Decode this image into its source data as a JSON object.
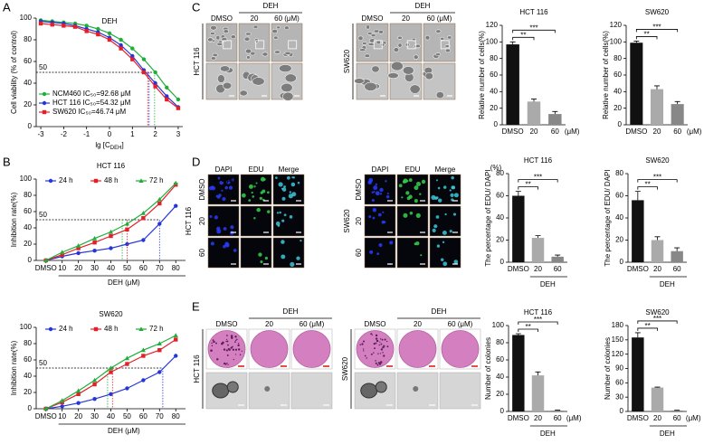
{
  "panel_labels": [
    "A",
    "B",
    "C",
    "D",
    "E"
  ],
  "charts": [
    {
      "type": "line",
      "title": "DEH",
      "xlabel": "lg [C",
      "xlabel_sub": "DEH",
      "xlabel_end": "]",
      "ylabel": "Cell viability (% of control)",
      "x": [
        -3,
        -2.5,
        -2,
        -1.5,
        -1,
        -0.5,
        0,
        0.5,
        1,
        1.5,
        2,
        2.5,
        3
      ],
      "xlim": [
        -3.2,
        3.2
      ],
      "xticks": [
        -3,
        -2,
        -1,
        0,
        1,
        2,
        3
      ],
      "ylim": [
        0,
        100
      ],
      "yticks": [
        0,
        20,
        40,
        60,
        80,
        100
      ],
      "threshold": 50,
      "legend": "lower-left",
      "series": [
        {
          "name": "NCM460 IC₅₀=92.68 μM",
          "color": "#1fae3a",
          "marker": "circle",
          "ic50": 1.97,
          "values": [
            98,
            97,
            96,
            95,
            93,
            90,
            86,
            80,
            72,
            62,
            50,
            36,
            25
          ]
        },
        {
          "name": "HCT 116 IC₅₀=54.32 μM",
          "color": "#2436d8",
          "marker": "circle",
          "ic50": 1.73,
          "values": [
            97,
            96,
            95,
            93,
            90,
            87,
            82,
            75,
            65,
            52,
            40,
            28,
            18
          ]
        },
        {
          "name": "SW620  IC₅₀=46.74 μM",
          "color": "#e3202a",
          "marker": "square",
          "ic50": 1.67,
          "values": [
            95,
            94,
            93,
            92,
            88,
            85,
            80,
            72,
            62,
            50,
            37,
            25,
            17
          ]
        }
      ]
    },
    {
      "type": "line",
      "title": "HCT 116",
      "xlabel": "DEH (μM)",
      "ylabel": "Inhibition rate(%)",
      "x": [
        0,
        10,
        20,
        30,
        40,
        50,
        60,
        70,
        80
      ],
      "xlim": [
        -6,
        86
      ],
      "xticks": [
        {
          "value": 0,
          "label": "DMSO"
        },
        10,
        20,
        30,
        40,
        50,
        60,
        70,
        80
      ],
      "ylim": [
        0,
        100
      ],
      "yticks": [
        0,
        20,
        40,
        60,
        80,
        100
      ],
      "threshold": 50,
      "legend": "top",
      "series": [
        {
          "name": "24 h",
          "color": "#2436d8",
          "marker": "circle",
          "ic50": 70,
          "values": [
            0,
            5,
            9,
            12,
            15,
            20,
            25,
            45,
            67
          ]
        },
        {
          "name": "48 h",
          "color": "#e3202a",
          "marker": "square",
          "ic50": 50,
          "values": [
            0,
            7,
            15,
            22,
            30,
            38,
            52,
            70,
            93
          ]
        },
        {
          "name": "72 h",
          "color": "#1fae3a",
          "marker": "triangle",
          "ic50": 47,
          "values": [
            0,
            10,
            18,
            27,
            35,
            45,
            58,
            75,
            95
          ]
        }
      ]
    },
    {
      "type": "line",
      "title": "SW620",
      "xlabel": "DEH (μM)",
      "ylabel": "Inhibition rate(%)",
      "x": [
        0,
        10,
        20,
        30,
        40,
        50,
        60,
        70,
        80
      ],
      "xlim": [
        -6,
        86
      ],
      "xticks": [
        {
          "value": 0,
          "label": "DMSO"
        },
        10,
        20,
        30,
        40,
        50,
        60,
        70,
        80
      ],
      "ylim": [
        0,
        100
      ],
      "yticks": [
        0,
        20,
        40,
        60,
        80,
        100
      ],
      "threshold": 50,
      "legend": "top",
      "series": [
        {
          "name": "24 h",
          "color": "#2436d8",
          "marker": "circle",
          "ic50": 72,
          "values": [
            0,
            3,
            7,
            12,
            18,
            25,
            35,
            45,
            65
          ]
        },
        {
          "name": "48 h",
          "color": "#e3202a",
          "marker": "square",
          "ic50": 41,
          "values": [
            0,
            8,
            18,
            30,
            45,
            55,
            65,
            72,
            85
          ]
        },
        {
          "name": "72 h",
          "color": "#1fae3a",
          "marker": "triangle",
          "ic50": 38,
          "values": [
            0,
            10,
            22,
            35,
            50,
            62,
            72,
            80,
            90
          ]
        }
      ]
    },
    {
      "type": "bar",
      "title": "HCT 116",
      "ylabel": "Relative number of cells(%)",
      "categories": [
        "DMSO",
        "20",
        "60"
      ],
      "unit": "(μM)",
      "values": [
        97,
        28,
        13
      ],
      "errors": [
        3,
        3,
        3
      ],
      "colors": [
        "#111111",
        "#aaaaaa",
        "#888888"
      ],
      "ylim": [
        0,
        120
      ],
      "yticks": [
        0,
        20,
        40,
        60,
        80,
        100,
        120
      ],
      "sig": [
        "**",
        "***"
      ]
    },
    {
      "type": "bar",
      "title": "SW620",
      "ylabel": "Relative number of cells(%)",
      "categories": [
        "DMSO",
        "20",
        "60"
      ],
      "unit": "(μM)",
      "values": [
        99,
        43,
        25
      ],
      "errors": [
        2,
        4,
        3
      ],
      "colors": [
        "#111111",
        "#aaaaaa",
        "#888888"
      ],
      "ylim": [
        0,
        120
      ],
      "yticks": [
        0,
        20,
        40,
        60,
        80,
        100,
        120
      ],
      "sig": [
        "**",
        "***"
      ]
    },
    {
      "type": "bar",
      "title": "HCT 116",
      "ylabel": "The percentage of EDU/ DAPI",
      "yunit": "(%)",
      "categories": [
        "DMSO",
        "20",
        "60"
      ],
      "group": "DEH",
      "values": [
        60,
        22,
        5
      ],
      "errors": [
        4,
        2,
        1.5
      ],
      "colors": [
        "#111111",
        "#aaaaaa",
        "#888888"
      ],
      "ylim": [
        0,
        80
      ],
      "yticks": [
        0,
        20,
        40,
        60,
        80
      ],
      "sig": [
        "**",
        "***"
      ]
    },
    {
      "type": "bar",
      "title": "SW620",
      "ylabel": "The percentage of EDU/ DAPI",
      "categories": [
        "DMSO",
        "20",
        "60"
      ],
      "group": "DEH",
      "values": [
        56,
        20,
        10
      ],
      "errors": [
        8,
        3,
        3
      ],
      "colors": [
        "#111111",
        "#aaaaaa",
        "#888888"
      ],
      "ylim": [
        0,
        80
      ],
      "yticks": [
        0,
        20,
        40,
        60,
        80
      ],
      "sig": [
        "**",
        "***"
      ]
    },
    {
      "type": "bar",
      "title": "HCT 116",
      "ylabel": "Number of colonies",
      "categories": [
        "DMSO",
        "20",
        "60"
      ],
      "unit": "(μM)",
      "group": "DEH",
      "values": [
        89,
        42,
        1
      ],
      "errors": [
        1.5,
        4,
        0.5
      ],
      "colors": [
        "#111111",
        "#aaaaaa",
        "#888888"
      ],
      "ylim": [
        0,
        100
      ],
      "yticks": [
        0,
        20,
        40,
        60,
        80,
        100
      ],
      "sig": [
        "**",
        "***"
      ]
    },
    {
      "type": "bar",
      "title": "SW620",
      "ylabel": "Number of colonies",
      "categories": [
        "DMSO",
        "20",
        "60"
      ],
      "unit": "(μM)",
      "group": "DEH",
      "values": [
        155,
        50,
        2
      ],
      "errors": [
        10,
        1,
        0.5
      ],
      "colors": [
        "#111111",
        "#aaaaaa",
        "#888888"
      ],
      "ylim": [
        0,
        180
      ],
      "yticks": [
        0,
        30,
        60,
        90,
        120,
        150,
        180
      ],
      "sig": [
        "**",
        "***"
      ]
    }
  ],
  "image_panels": [
    {
      "cell_line": "HCT 116",
      "group": "DEH",
      "top": [
        "DMSO",
        "20",
        "60 (μM)"
      ]
    },
    {
      "cell_line": "SW620",
      "group": "DEH",
      "top": [
        "DMSO",
        "20",
        "60 (μM)"
      ]
    },
    {
      "cell_line": "HCT 116",
      "top": [
        "DAPI",
        "EDU",
        "Merge"
      ],
      "top_colors": [
        "#2a3cff",
        "#1fae3a",
        "#000000"
      ],
      "rows": [
        "DMSO",
        "20",
        "60"
      ],
      "scale": "100 μm"
    },
    {
      "cell_line": "SW620",
      "top": [
        "DAPI",
        "EDU",
        "Merge"
      ],
      "top_colors": [
        "#2a3cff",
        "#1fae3a",
        "#000000"
      ],
      "rows": [
        "DMSO",
        "20",
        "60"
      ]
    },
    {
      "cell_line": "HCT 116",
      "group": "DEH",
      "top": [
        "DMSO",
        "20",
        "60 (μM)"
      ]
    },
    {
      "cell_line": "SW620",
      "group": "DEH",
      "top": [
        "DMSO",
        "20",
        "60 (μM)"
      ]
    }
  ]
}
